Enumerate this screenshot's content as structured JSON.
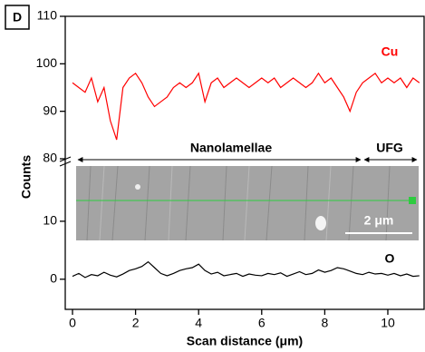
{
  "chart_data": [
    {
      "type": "line",
      "panel_label": "D",
      "x": [
        0,
        0.2,
        0.4,
        0.6,
        0.8,
        1,
        1.2,
        1.4,
        1.6,
        1.8,
        2,
        2.2,
        2.4,
        2.6,
        2.8,
        3,
        3.2,
        3.4,
        3.6,
        3.8,
        4,
        4.2,
        4.4,
        4.6,
        4.8,
        5,
        5.2,
        5.4,
        5.6,
        5.8,
        6,
        6.2,
        6.4,
        6.6,
        6.8,
        7,
        7.2,
        7.4,
        7.6,
        7.8,
        8,
        8.2,
        8.4,
        8.6,
        8.8,
        9,
        9.2,
        9.4,
        9.6,
        9.8,
        10,
        10.2,
        10.4,
        10.6,
        10.8,
        11
      ],
      "xlim": [
        -0.23,
        11.15
      ],
      "ylim": [
        80,
        110
      ],
      "yticks": [
        80,
        90,
        100,
        110
      ],
      "series": [
        {
          "name": "Cu",
          "color": "#ff0000",
          "values": [
            96,
            95,
            94,
            97,
            92,
            95,
            88,
            84,
            95,
            97,
            98,
            96,
            93,
            91,
            92,
            93,
            95,
            96,
            95,
            96,
            98,
            92,
            96,
            97,
            95,
            96,
            97,
            96,
            95,
            96,
            97,
            96,
            97,
            95,
            96,
            97,
            96,
            95,
            96,
            98,
            96,
            97,
            95,
            93,
            90,
            94,
            96,
            97,
            98,
            96,
            97,
            96,
            97,
            95,
            97,
            96
          ]
        }
      ]
    },
    {
      "type": "line",
      "x": [
        0,
        0.2,
        0.4,
        0.6,
        0.8,
        1,
        1.2,
        1.4,
        1.6,
        1.8,
        2,
        2.2,
        2.4,
        2.6,
        2.8,
        3,
        3.2,
        3.4,
        3.6,
        3.8,
        4,
        4.2,
        4.4,
        4.6,
        4.8,
        5,
        5.2,
        5.4,
        5.6,
        5.8,
        6,
        6.2,
        6.4,
        6.6,
        6.8,
        7,
        7.2,
        7.4,
        7.6,
        7.8,
        8,
        8.2,
        8.4,
        8.6,
        8.8,
        9,
        9.2,
        9.4,
        9.6,
        9.8,
        10,
        10.2,
        10.4,
        10.6,
        10.8,
        11
      ],
      "xlim": [
        -0.23,
        11.15
      ],
      "xticks": [
        0,
        2,
        4,
        6,
        8,
        10
      ],
      "ylim": [
        -5.2,
        20
      ],
      "yticks": [
        0,
        10
      ],
      "xlabel": "Scan distance (μm)",
      "ylabel": "Counts",
      "annotations": [
        "Nanolamellae",
        "UFG",
        "2 μm"
      ],
      "series": [
        {
          "name": "O",
          "color": "#000000",
          "values": [
            0.5,
            1.0,
            0.3,
            0.8,
            0.6,
            1.2,
            0.7,
            0.4,
            0.9,
            1.5,
            1.8,
            2.2,
            3.0,
            2.0,
            1.0,
            0.6,
            1.0,
            1.5,
            1.8,
            2.0,
            2.6,
            1.5,
            0.9,
            1.2,
            0.6,
            0.8,
            1.0,
            0.5,
            0.9,
            0.7,
            0.6,
            1.0,
            0.8,
            1.1,
            0.5,
            0.9,
            1.3,
            0.8,
            1.0,
            1.6,
            1.2,
            1.5,
            2.0,
            1.8,
            1.4,
            1.0,
            0.8,
            1.2,
            0.9,
            1.0,
            0.7,
            1.0,
            0.6,
            0.9,
            0.5,
            0.6
          ]
        }
      ]
    }
  ]
}
